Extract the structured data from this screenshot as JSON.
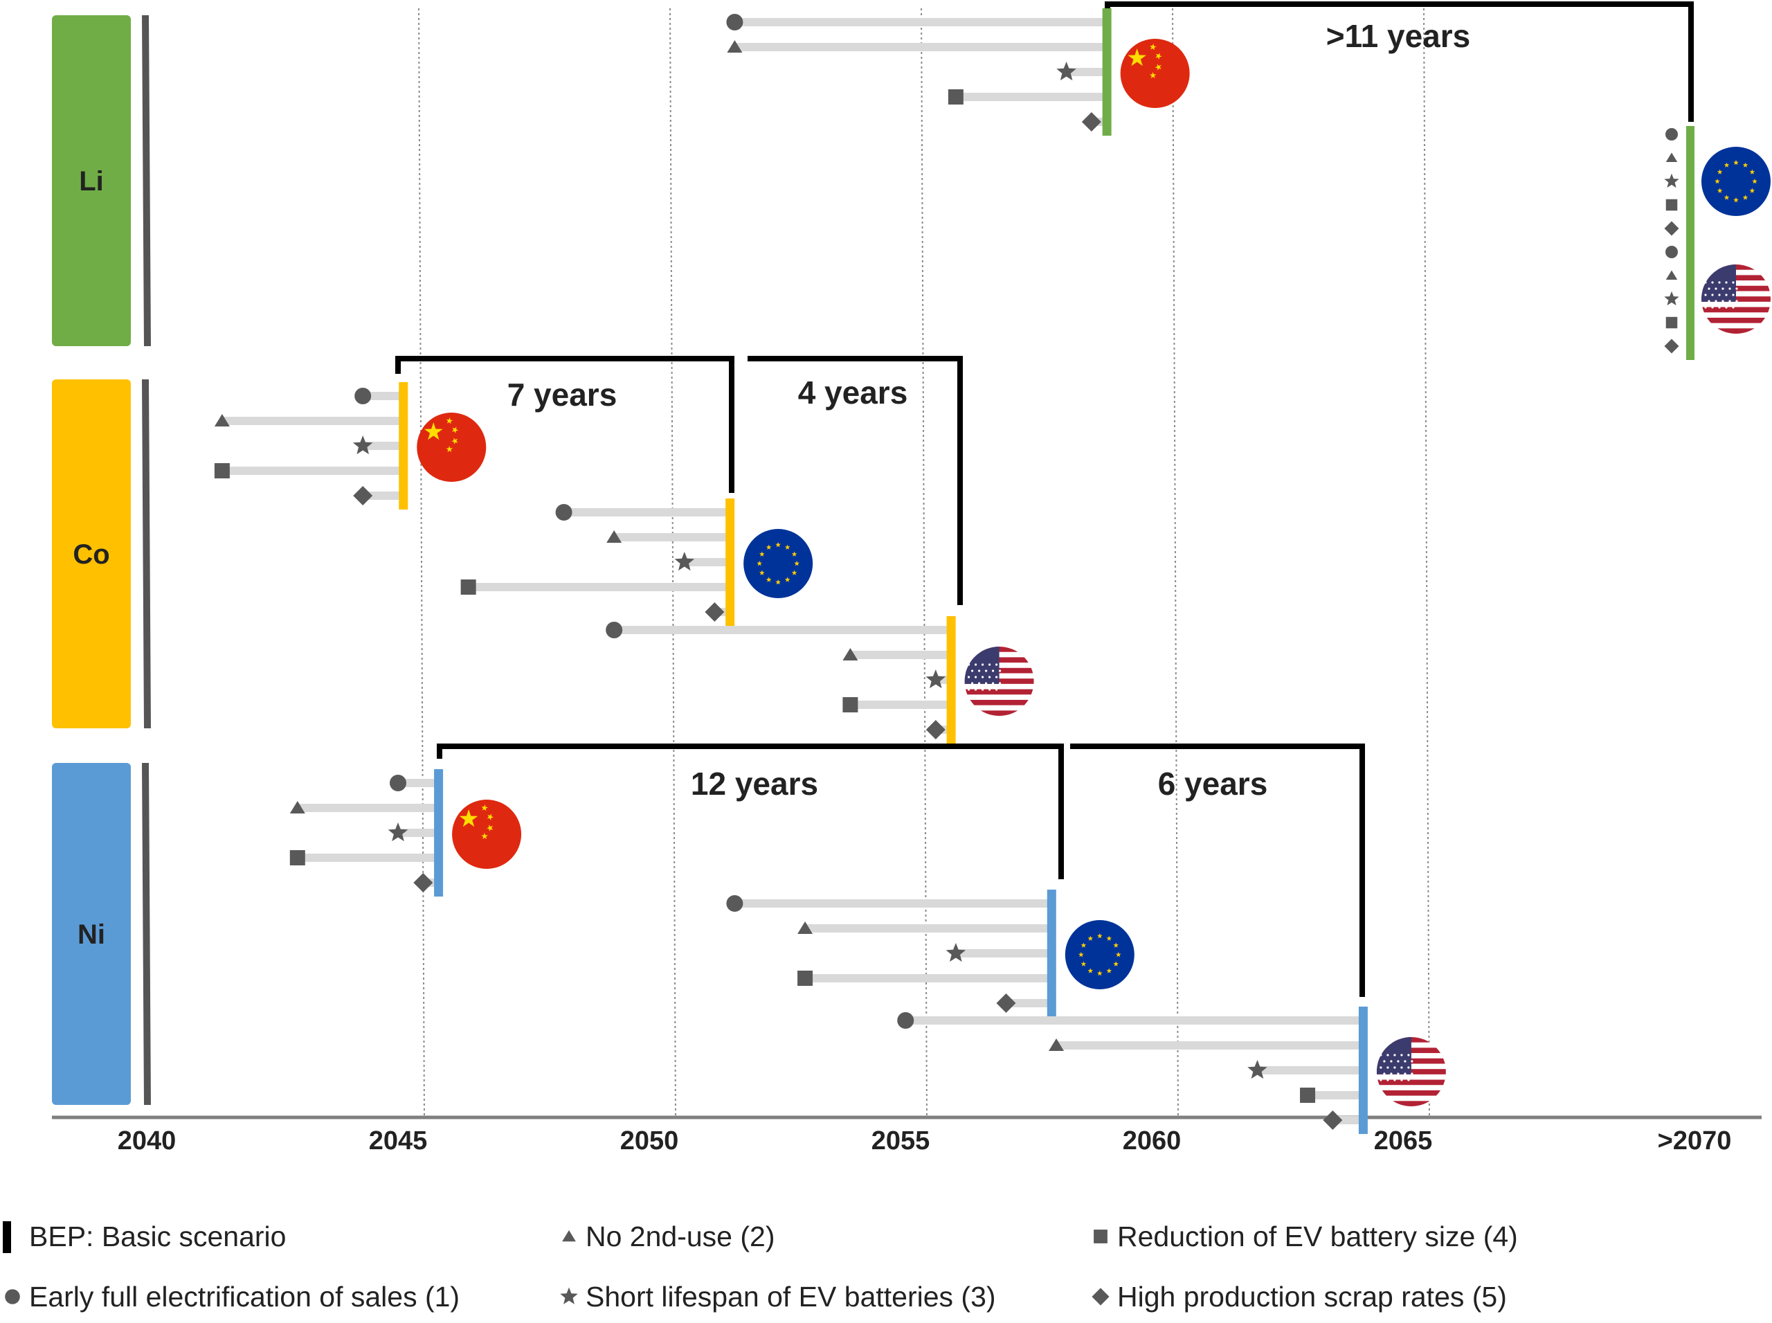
{
  "chart_data": {
    "type": "timeline-range",
    "x_axis": {
      "ticks": [
        "2040",
        "2045",
        "2050",
        "2055",
        "2060",
        "2065",
        ">2070"
      ],
      "range": [
        2040,
        2070
      ],
      "grid": "dotted vertical at each tick"
    },
    "rows": [
      {
        "label": "Li",
        "color": "#70ad47",
        "regions": [
          {
            "region": "China",
            "bep": 2059.1,
            "scenarios": {
              "1": 2051.7,
              "2": 2051.7,
              "3": 2058.3,
              "4": 2056.1,
              "5": 2058.8
            }
          },
          {
            "region": "EU",
            "bep": ">2070",
            "scenarios": {
              "1": ">2070",
              "2": ">2070",
              "3": ">2070",
              "4": ">2070",
              "5": ">2070"
            }
          },
          {
            "region": "USA",
            "bep": ">2070",
            "scenarios": {
              "1": ">2070",
              "2": ">2070",
              "3": ">2070",
              "4": ">2070",
              "5": ">2070"
            }
          }
        ]
      },
      {
        "label": "Co",
        "color": "#ffc000",
        "regions": [
          {
            "region": "China",
            "bep": 2045.1,
            "scenarios": {
              "1": 2044.3,
              "2": 2041.5,
              "3": 2044.3,
              "4": 2041.5,
              "5": 2044.3
            }
          },
          {
            "region": "EU",
            "bep": 2051.6,
            "scenarios": {
              "1": 2048.3,
              "2": 2049.3,
              "3": 2050.7,
              "4": 2046.4,
              "5": 2051.3
            }
          },
          {
            "region": "USA",
            "bep": 2056.0,
            "scenarios": {
              "1": 2049.3,
              "2": 2054.0,
              "3": 2055.7,
              "4": 2054.0,
              "5": 2055.7
            }
          }
        ]
      },
      {
        "label": "Ni",
        "color": "#5b9bd5",
        "regions": [
          {
            "region": "China",
            "bep": 2045.8,
            "scenarios": {
              "1": 2045.0,
              "2": 2043.0,
              "3": 2045.0,
              "4": 2043.0,
              "5": 2045.5
            }
          },
          {
            "region": "EU",
            "bep": 2058.0,
            "scenarios": {
              "1": 2051.7,
              "2": 2053.1,
              "3": 2056.1,
              "4": 2053.1,
              "5": 2057.1
            }
          },
          {
            "region": "USA",
            "bep": 2064.2,
            "scenarios": {
              "1": 2055.1,
              "2": 2058.1,
              "3": 2062.1,
              "4": 2063.1,
              "5": 2063.6
            }
          }
        ]
      }
    ],
    "gap_annotations": [
      {
        "row": "Li",
        "from": "China",
        "to": "EU",
        "label": ">11 years"
      },
      {
        "row": "Co",
        "from": "China",
        "to": "EU",
        "label": "7 years"
      },
      {
        "row": "Co",
        "from": "EU",
        "to": "USA",
        "label": "4 years"
      },
      {
        "row": "Ni",
        "from": "China",
        "to": "EU",
        "label": "12 years"
      },
      {
        "row": "Ni",
        "from": "EU",
        "to": "USA",
        "label": "6 years"
      }
    ],
    "legend": {
      "placement": "bottom",
      "items": [
        {
          "symbol": "bar",
          "label": "BEP: Basic scenario"
        },
        {
          "symbol": "triangle",
          "label": "No 2nd-use (2)"
        },
        {
          "symbol": "square",
          "label": "Reduction of EV battery size (4)"
        },
        {
          "symbol": "circle",
          "label": "Early full electrification of sales (1)"
        },
        {
          "symbol": "star",
          "label": "Short lifespan of EV batteries (3)"
        },
        {
          "symbol": "diamond",
          "label": "High production scrap rates (5)"
        }
      ]
    },
    "colors": {
      "line": "#d9d9d9",
      "marker": "#595959",
      "bracket": "#000000",
      "axis": "#7f7f7f"
    },
    "flag_icons": {
      "China": "china-flag-icon",
      "EU": "eu-flag-icon",
      "USA": "usa-flag-icon"
    }
  }
}
